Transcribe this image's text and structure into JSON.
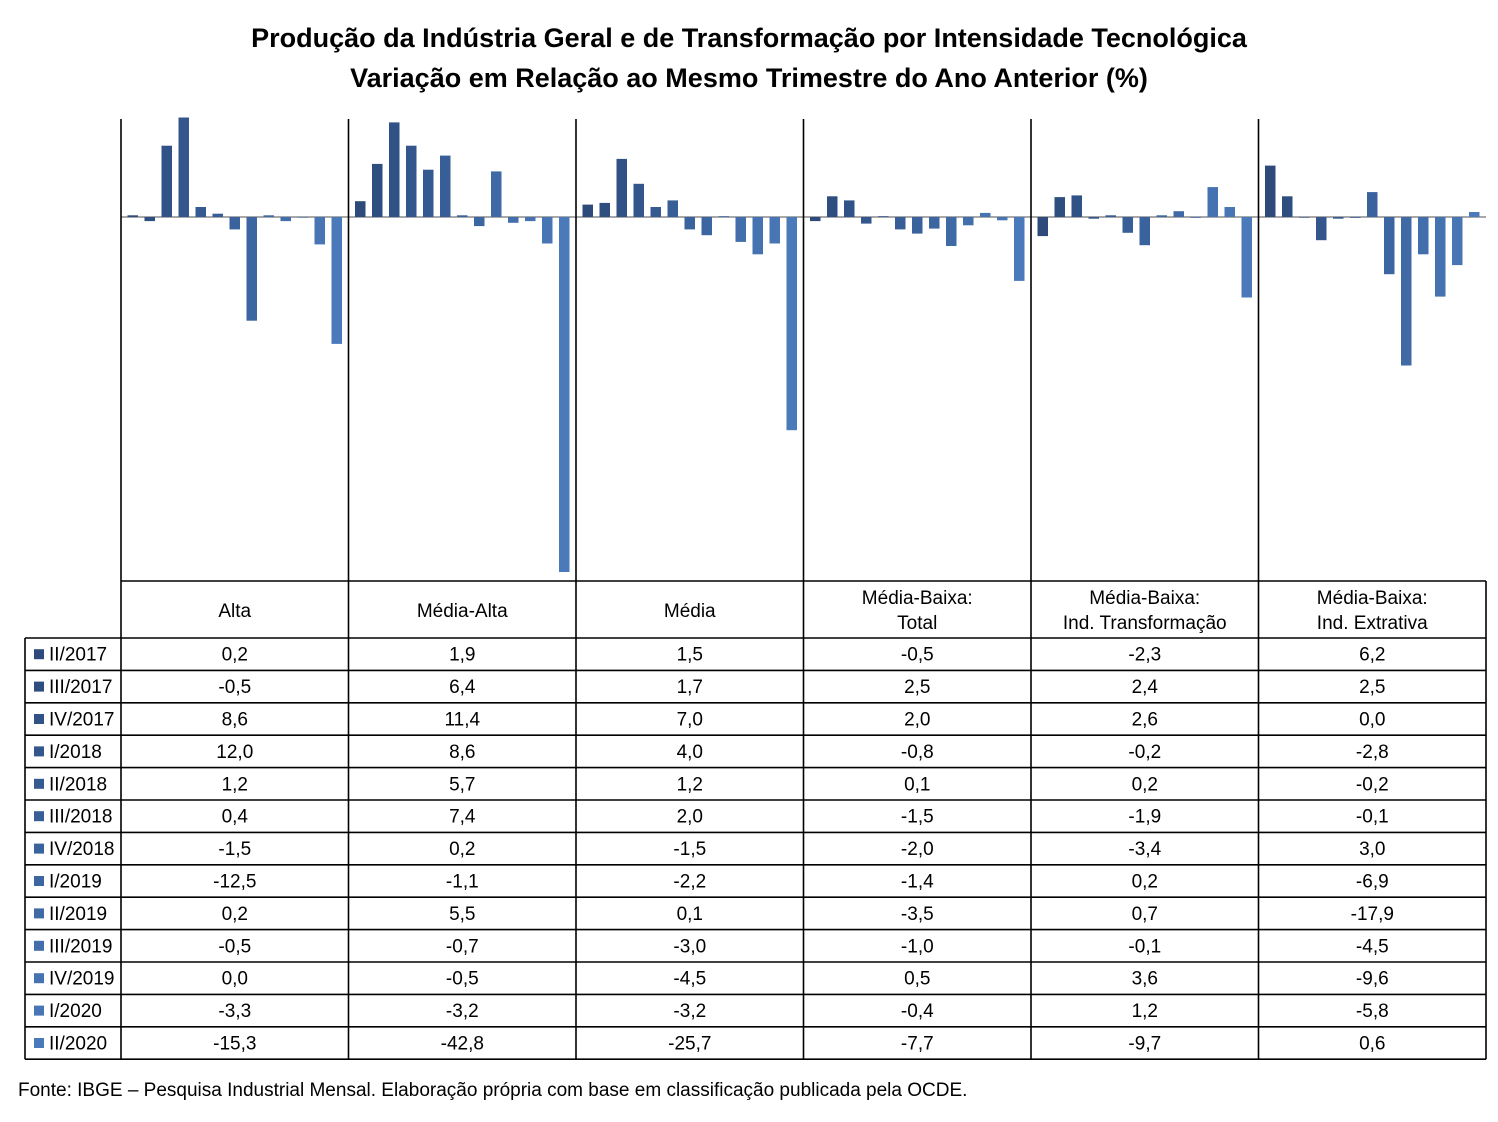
{
  "chart_data": {
    "type": "bar",
    "title": "Produção da Indústria Geral e de Transformação por Intensidade Tecnológica",
    "subtitle": "Variação em Relação ao Mesmo Trimestre do Ano Anterior (%)",
    "categories": [
      {
        "line1": "Alta",
        "line2": ""
      },
      {
        "line1": "Média-Alta",
        "line2": ""
      },
      {
        "line1": "Média",
        "line2": ""
      },
      {
        "line1": "Média-Baixa:",
        "line2": "Total"
      },
      {
        "line1": "Média-Baixa:",
        "line2": "Ind. Transformação"
      },
      {
        "line1": "Média-Baixa:",
        "line2": "Ind. Extrativa"
      }
    ],
    "series": [
      {
        "name": "II/2017",
        "color": "#2d4a7a",
        "values": [
          "0,2",
          "1,9",
          "1,5",
          "-0,5",
          "-2,3",
          "6,2"
        ]
      },
      {
        "name": "III/2017",
        "color": "#2f4e80",
        "values": [
          "-0,5",
          "6,4",
          "1,7",
          "2,5",
          "2,4",
          "2,5"
        ]
      },
      {
        "name": "IV/2017",
        "color": "#315286",
        "values": [
          "8,6",
          "11,4",
          "7,0",
          "2,0",
          "2,6",
          "0,0"
        ]
      },
      {
        "name": "I/2018",
        "color": "#33568c",
        "values": [
          "12,0",
          "8,6",
          "4,0",
          "-0,8",
          "-0,2",
          "-2,8"
        ]
      },
      {
        "name": "II/2018",
        "color": "#355a92",
        "values": [
          "1,2",
          "5,7",
          "1,2",
          "0,1",
          "0,2",
          "-0,2"
        ]
      },
      {
        "name": "III/2018",
        "color": "#375e97",
        "values": [
          "0,4",
          "7,4",
          "2,0",
          "-1,5",
          "-1,9",
          "-0,1"
        ]
      },
      {
        "name": "IV/2018",
        "color": "#3a629c",
        "values": [
          "-1,5",
          "0,2",
          "-1,5",
          "-2,0",
          "-3,4",
          "3,0"
        ]
      },
      {
        "name": "I/2019",
        "color": "#3c66a1",
        "values": [
          "-12,5",
          "-1,1",
          "-2,2",
          "-1,4",
          "0,2",
          "-6,9"
        ]
      },
      {
        "name": "II/2019",
        "color": "#3f6aa6",
        "values": [
          "0,2",
          "5,5",
          "0,1",
          "-3,5",
          "0,7",
          "-17,9"
        ]
      },
      {
        "name": "III/2019",
        "color": "#426eab",
        "values": [
          "-0,5",
          "-0,7",
          "-3,0",
          "-1,0",
          "-0,1",
          "-4,5"
        ]
      },
      {
        "name": "IV/2019",
        "color": "#4572b0",
        "values": [
          "0,0",
          "-0,5",
          "-4,5",
          "0,5",
          "3,6",
          "-9,6"
        ]
      },
      {
        "name": "I/2020",
        "color": "#4876b5",
        "values": [
          "-3,3",
          "-3,2",
          "-3,2",
          "-0,4",
          "1,2",
          "-5,8"
        ]
      },
      {
        "name": "II/2020",
        "color": "#4b7aba",
        "values": [
          "-15,3",
          "-42,8",
          "-25,7",
          "-7,7",
          "-9,7",
          "0,6"
        ]
      }
    ],
    "ylim": [
      -43.5,
      11.7
    ],
    "legend": "left-table",
    "grid": false
  },
  "source": "Fonte: IBGE – Pesquisa Industrial Mensal. Elaboração própria com base em classificação publicada pela OCDE."
}
